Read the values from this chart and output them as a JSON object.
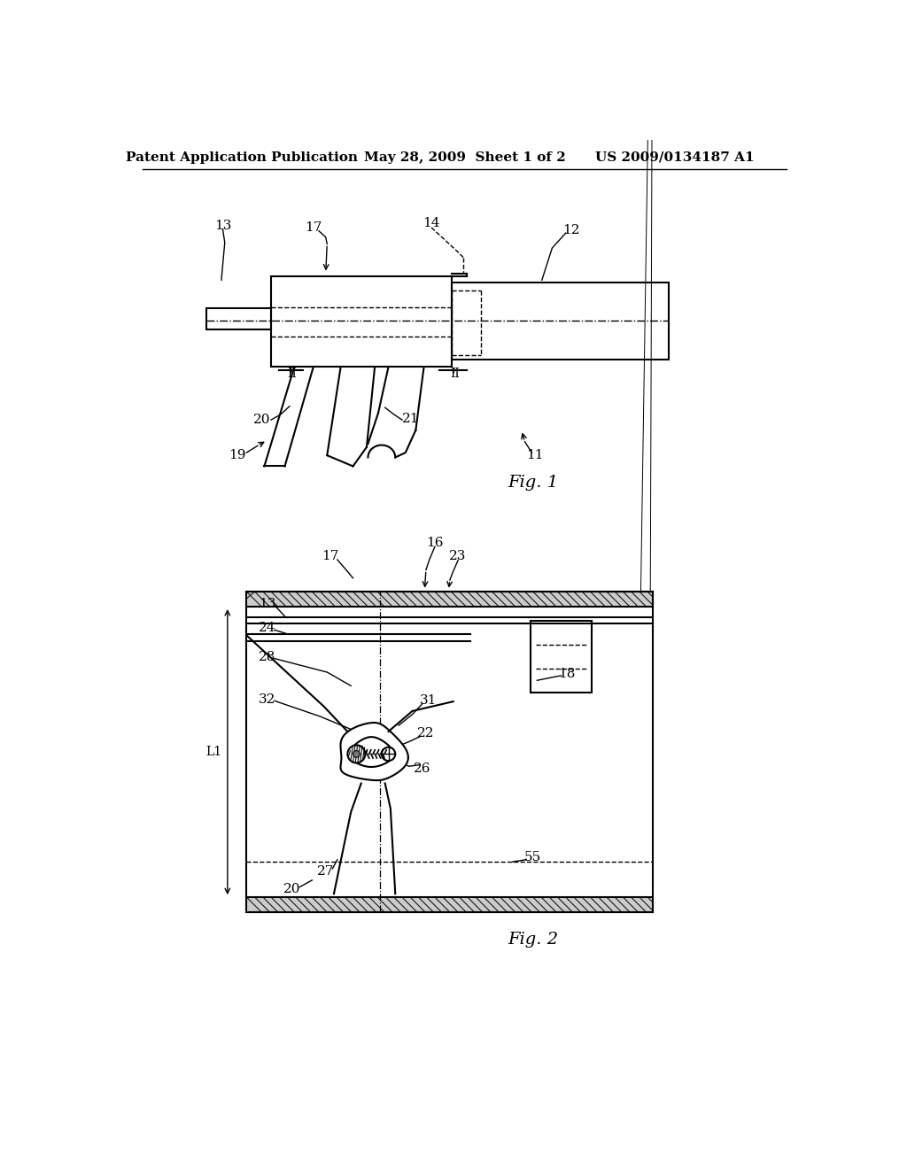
{
  "bg_color": "#ffffff",
  "line_color": "#000000",
  "header_left": "Patent Application Publication",
  "header_mid": "May 28, 2009  Sheet 1 of 2",
  "header_right": "US 2009/0134187 A1",
  "fig1_label": "Fig. 1",
  "fig2_label": "Fig. 2"
}
